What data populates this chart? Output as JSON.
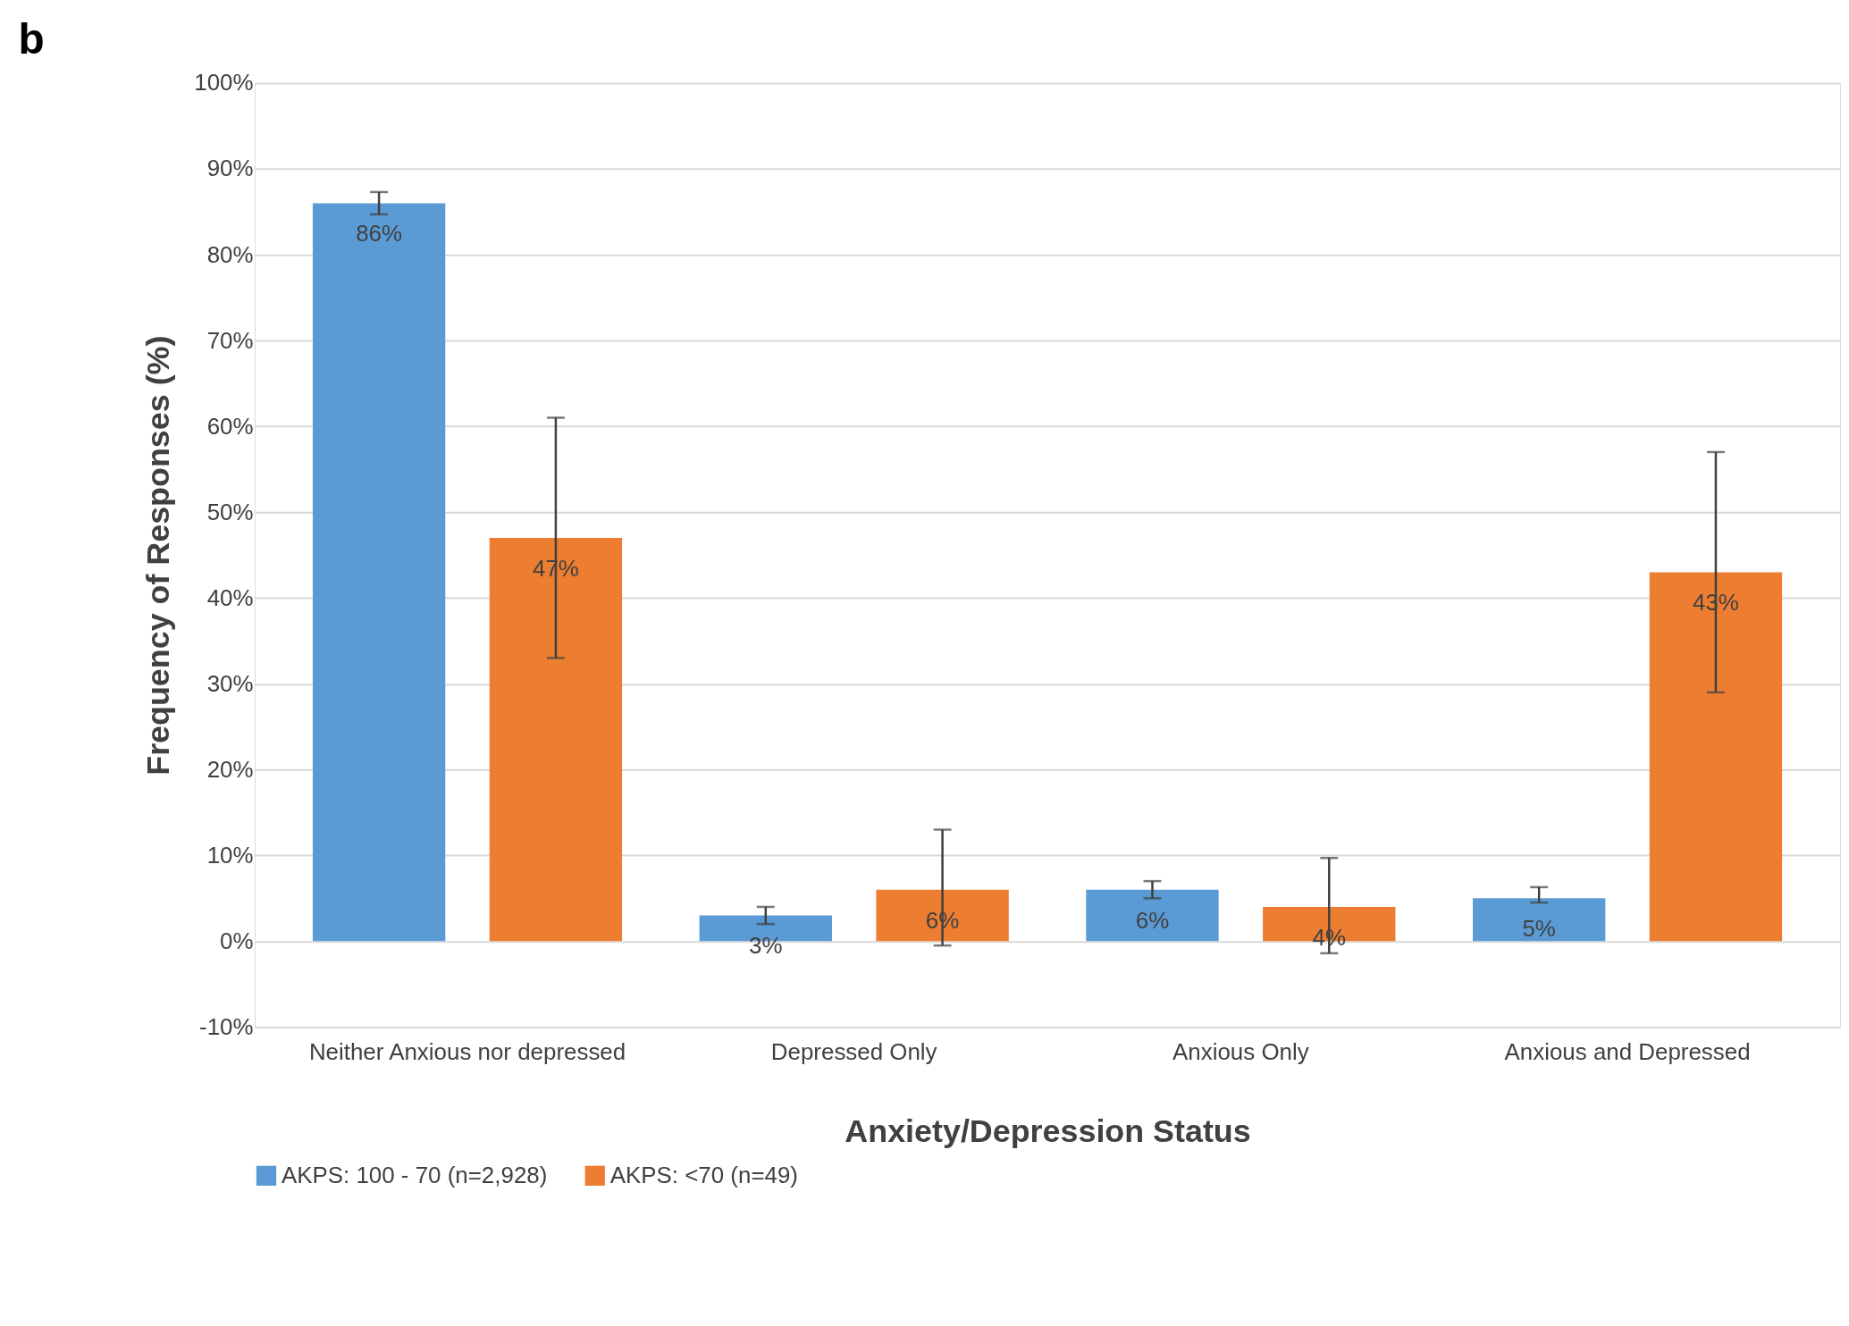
{
  "chart_data": {
    "type": "bar",
    "annotations": [
      "b"
    ],
    "xlabel": "Anxiety/Depression Status",
    "ylabel": "Frequency of Responses (%)",
    "categories": [
      "Neither Anxious nor depressed",
      "Depressed Only",
      "Anxious Only",
      "Anxious and Depressed"
    ],
    "series": [
      {
        "name": "AKPS: 100 - 70 (n=2,928)",
        "color": "#5b9bd5",
        "values": [
          86,
          3,
          6,
          5
        ],
        "value_labels": [
          "86%",
          "3%",
          "6%",
          "5%"
        ],
        "errors": [
          [
            84.7,
            87.3
          ],
          [
            2,
            4
          ],
          [
            5,
            7
          ],
          [
            4.5,
            6.3
          ]
        ]
      },
      {
        "name": "AKPS: <70 (n=49)",
        "color": "#ed7d31",
        "values": [
          47,
          6,
          4,
          43
        ],
        "value_labels": [
          "47%",
          "6%",
          "4%",
          "43%"
        ],
        "errors": [
          [
            33,
            61
          ],
          [
            -0.5,
            13
          ],
          [
            -1.4,
            9.7
          ],
          [
            29,
            57
          ]
        ]
      }
    ],
    "ylim": [
      -10,
      100
    ],
    "yticks": [
      {
        "value": -10,
        "label": "-10%"
      },
      {
        "value": 0,
        "label": "0%"
      },
      {
        "value": 10,
        "label": "10%"
      },
      {
        "value": 20,
        "label": "20%"
      },
      {
        "value": 30,
        "label": "30%"
      },
      {
        "value": 40,
        "label": "40%"
      },
      {
        "value": 50,
        "label": "50%"
      },
      {
        "value": 60,
        "label": "60%"
      },
      {
        "value": 70,
        "label": "70%"
      },
      {
        "value": 80,
        "label": "80%"
      },
      {
        "value": 90,
        "label": "90%"
      },
      {
        "value": 100,
        "label": "100%"
      }
    ],
    "grid": "y",
    "legend": "bottom"
  }
}
